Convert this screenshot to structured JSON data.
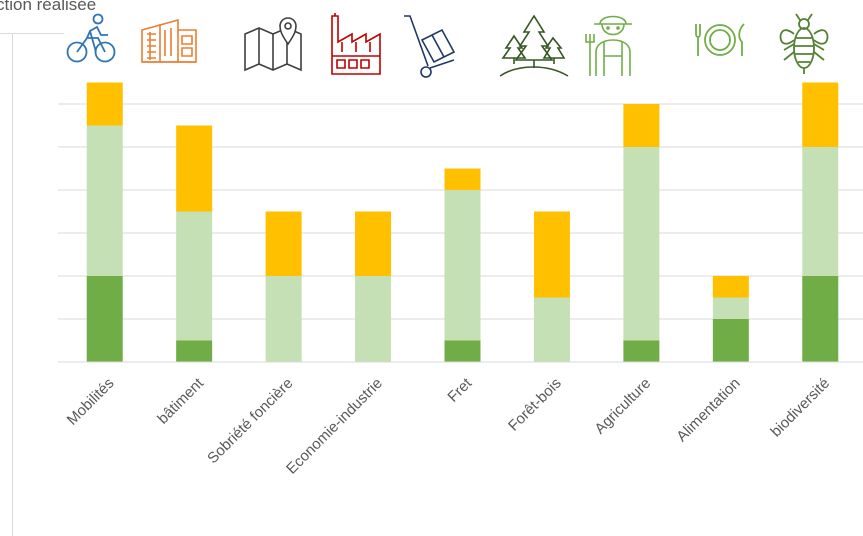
{
  "title": "ction réalisée",
  "colors": {
    "dark_green": "#70ad47",
    "light_green": "#c5e0b4",
    "amber": "#ffc000",
    "grid": "#d9d9d9",
    "axis_text": "#595959"
  },
  "icons": [
    {
      "name": "cyclist-icon",
      "color": "#2e75b6"
    },
    {
      "name": "building-icon",
      "color": "#ed7d31"
    },
    {
      "name": "map-pin-icon",
      "color": "#3f3f3f"
    },
    {
      "name": "factory-icon",
      "color": "#c00000"
    },
    {
      "name": "hand-truck-icon",
      "color": "#1f3864"
    },
    {
      "name": "forest-icon",
      "color": "#375623"
    },
    {
      "name": "farmer-icon",
      "color": "#70ad47"
    },
    {
      "name": "plate-cutlery-icon",
      "color": "#70ad47"
    },
    {
      "name": "bee-icon",
      "color": "#548235"
    }
  ],
  "chart_data": {
    "type": "bar",
    "stacked": true,
    "categories": [
      "Mobilités",
      "bâtiment",
      "Sobriété foncière",
      "Economie-industrie",
      "Fret",
      "Forêt-bois",
      "Agriculture",
      "Alimentation",
      "biodiversité"
    ],
    "series": [
      {
        "color": "#70ad47",
        "values": [
          2,
          0.5,
          0,
          0,
          0.5,
          0,
          0.5,
          1,
          2
        ]
      },
      {
        "color": "#c5e0b4",
        "values": [
          3.5,
          3,
          2,
          2,
          3.5,
          1.5,
          4.5,
          0.5,
          3
        ]
      },
      {
        "color": "#ffc000",
        "values": [
          1,
          2,
          1.5,
          1.5,
          0.5,
          2,
          1,
          0.5,
          1.5
        ]
      }
    ],
    "ylim": [
      0,
      6.5
    ],
    "grid": true,
    "legend": "none"
  }
}
